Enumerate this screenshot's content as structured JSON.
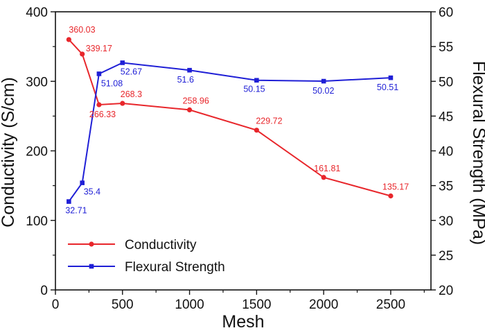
{
  "chart_data": {
    "type": "line",
    "title": "",
    "xlabel": "Mesh",
    "ylabel_left": "Conductivity (S/cm)",
    "ylabel_right": "Flexural Strength (MPa)",
    "xlim": [
      0,
      2800
    ],
    "ylim_left": [
      0,
      400
    ],
    "ylim_right": [
      20,
      60
    ],
    "x_ticks": [
      0,
      500,
      1000,
      1500,
      2000,
      2500
    ],
    "y_left_ticks": [
      0,
      100,
      200,
      300,
      400
    ],
    "y_right_ticks": [
      20,
      25,
      30,
      35,
      40,
      45,
      50,
      55,
      60
    ],
    "grid": false,
    "legend_position": "bottom-left",
    "series": [
      {
        "name": "Conductivity",
        "axis": "left",
        "color": "#e8262b",
        "marker": "circle",
        "x": [
          100,
          200,
          325,
          500,
          1000,
          1500,
          2000,
          2500
        ],
        "values": [
          360.03,
          339.17,
          266.33,
          268.3,
          258.96,
          229.72,
          161.81,
          135.17
        ],
        "labels": [
          "360.03",
          "339.17",
          "266.33",
          "268.3",
          "258.96",
          "229.72",
          "161.81",
          "135.17"
        ]
      },
      {
        "name": "Flexural Strength",
        "axis": "right",
        "color": "#1f1fd6",
        "marker": "square",
        "x": [
          100,
          200,
          325,
          500,
          1000,
          1500,
          2000,
          2500
        ],
        "values": [
          32.71,
          35.4,
          51.08,
          52.67,
          51.6,
          50.15,
          50.02,
          50.51
        ],
        "labels": [
          "32.71",
          "35.4",
          "51.08",
          "52.67",
          "51.6",
          "50.15",
          "50.02",
          "50.51"
        ]
      }
    ]
  }
}
